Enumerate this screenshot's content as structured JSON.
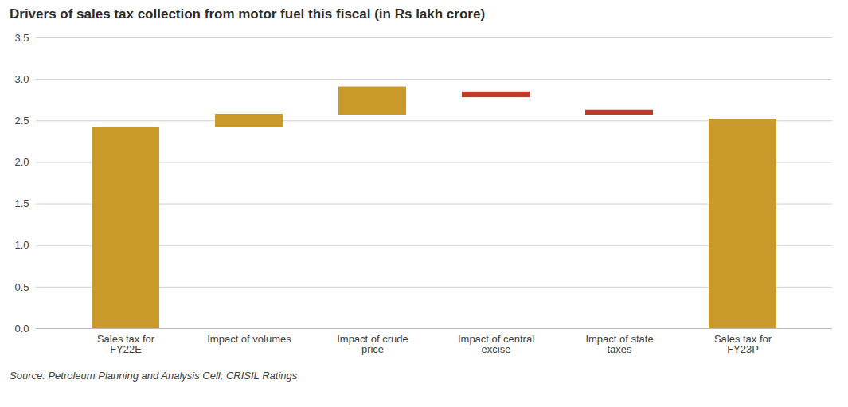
{
  "chart_data": {
    "type": "bar",
    "title": "Drivers of sales tax collection from motor fuel this fiscal (in Rs lakh crore)",
    "source": "Source: Petroleum Planning and Analysis Cell; CRISIL Ratings",
    "categories": [
      "Sales tax for\nFY22E",
      "Impact of volumes",
      "Impact of crude\nprice",
      "Impact of central\nexcise",
      "Impact of state\ntaxes",
      "Sales tax for\nFY23P"
    ],
    "bottoms": [
      0.0,
      2.42,
      2.57,
      2.85,
      2.63,
      0.0
    ],
    "tops": [
      2.42,
      2.58,
      2.91,
      2.78,
      2.57,
      2.52
    ],
    "colors": [
      "#C9992A",
      "#C9992A",
      "#C9992A",
      "#C0392B",
      "#C0392B",
      "#C9992A"
    ],
    "ylim": [
      0,
      3.5
    ],
    "yticks": [
      {
        "value": 0,
        "label": "0.0"
      },
      0.5,
      {
        "value": 1,
        "label": "1.0"
      },
      1.5,
      {
        "value": 2,
        "label": "2.0"
      },
      2.5,
      {
        "value": 3,
        "label": "3.0"
      },
      3.5
    ],
    "grid": true
  }
}
